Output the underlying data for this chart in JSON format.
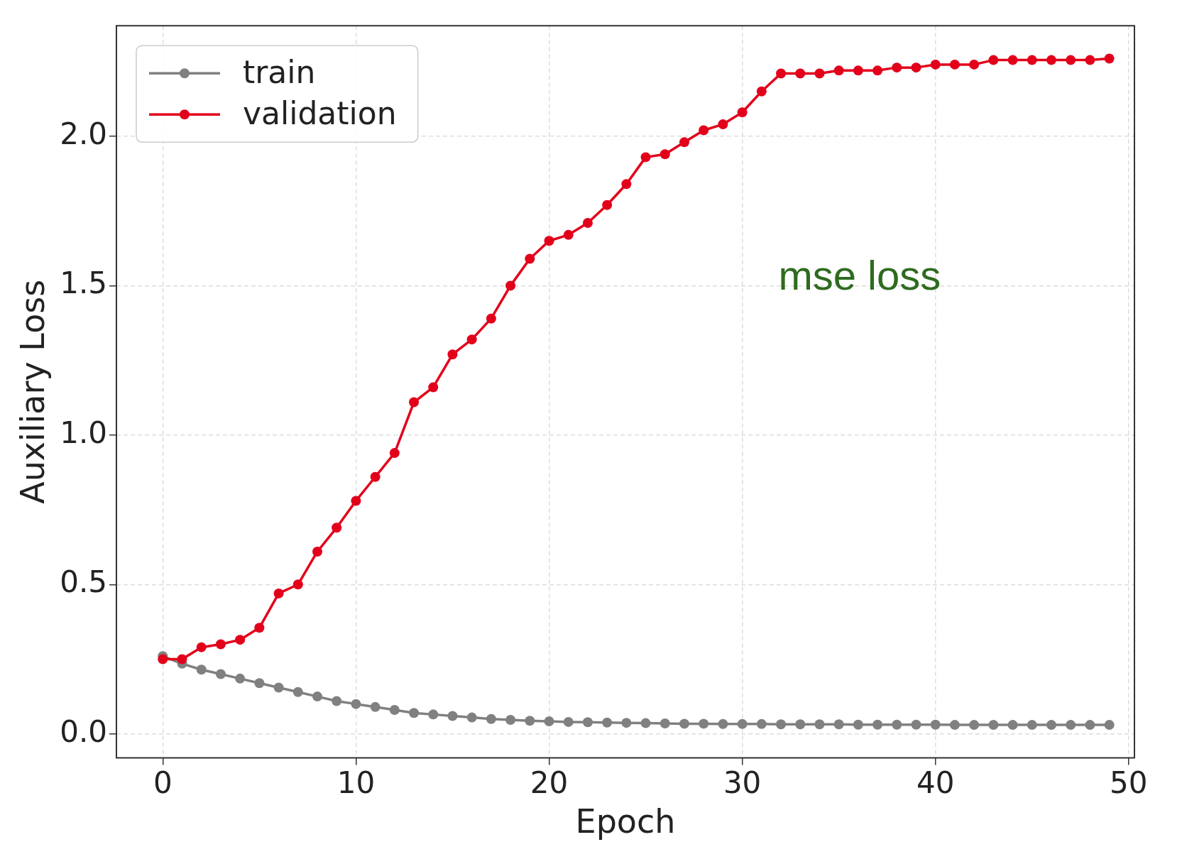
{
  "chart_data": {
    "type": "line",
    "xlabel": "Epoch",
    "ylabel": "Auxiliary Loss",
    "annotations": [
      "mse loss"
    ],
    "x": [
      0,
      1,
      2,
      3,
      4,
      5,
      6,
      7,
      8,
      9,
      10,
      11,
      12,
      13,
      14,
      15,
      16,
      17,
      18,
      19,
      20,
      21,
      22,
      23,
      24,
      25,
      26,
      27,
      28,
      29,
      30,
      31,
      32,
      33,
      34,
      35,
      36,
      37,
      38,
      39,
      40,
      41,
      42,
      43,
      44,
      45,
      46,
      47,
      48,
      49
    ],
    "series": [
      {
        "name": "train",
        "color": "#808080",
        "values": [
          0.26,
          0.235,
          0.215,
          0.2,
          0.185,
          0.17,
          0.155,
          0.14,
          0.125,
          0.11,
          0.1,
          0.09,
          0.08,
          0.07,
          0.065,
          0.06,
          0.055,
          0.05,
          0.047,
          0.044,
          0.042,
          0.04,
          0.039,
          0.038,
          0.037,
          0.036,
          0.035,
          0.034,
          0.034,
          0.033,
          0.033,
          0.033,
          0.032,
          0.032,
          0.032,
          0.032,
          0.031,
          0.031,
          0.031,
          0.031,
          0.031,
          0.03,
          0.03,
          0.03,
          0.03,
          0.03,
          0.03,
          0.03,
          0.03,
          0.03
        ]
      },
      {
        "name": "validation",
        "color": "#e3001b",
        "values": [
          0.25,
          0.25,
          0.29,
          0.3,
          0.315,
          0.355,
          0.47,
          0.5,
          0.61,
          0.69,
          0.78,
          0.86,
          0.94,
          1.11,
          1.16,
          1.27,
          1.32,
          1.39,
          1.5,
          1.59,
          1.65,
          1.67,
          1.71,
          1.77,
          1.84,
          1.93,
          1.94,
          1.98,
          2.02,
          2.04,
          2.08,
          2.15,
          2.21,
          2.21,
          2.21,
          2.22,
          2.22,
          2.22,
          2.23,
          2.23,
          2.24,
          2.24,
          2.24,
          2.255,
          2.255,
          2.255,
          2.255,
          2.255,
          2.255,
          2.26
        ]
      }
    ],
    "xlim": [
      -2.4,
      50.3
    ],
    "xticks": [
      0,
      10,
      20,
      30,
      40,
      50
    ],
    "ylim": [
      -0.08,
      2.37
    ],
    "yticks": [
      {
        "value": 0,
        "label": "0.0"
      },
      {
        "value": 0.5,
        "label": "0.5"
      },
      {
        "value": 1,
        "label": "1.0"
      },
      {
        "value": 1.5,
        "label": "1.5"
      },
      {
        "value": 2,
        "label": "2.0"
      }
    ],
    "grid": true,
    "legend": "top left",
    "marker": "circle",
    "line_style": "solid"
  }
}
